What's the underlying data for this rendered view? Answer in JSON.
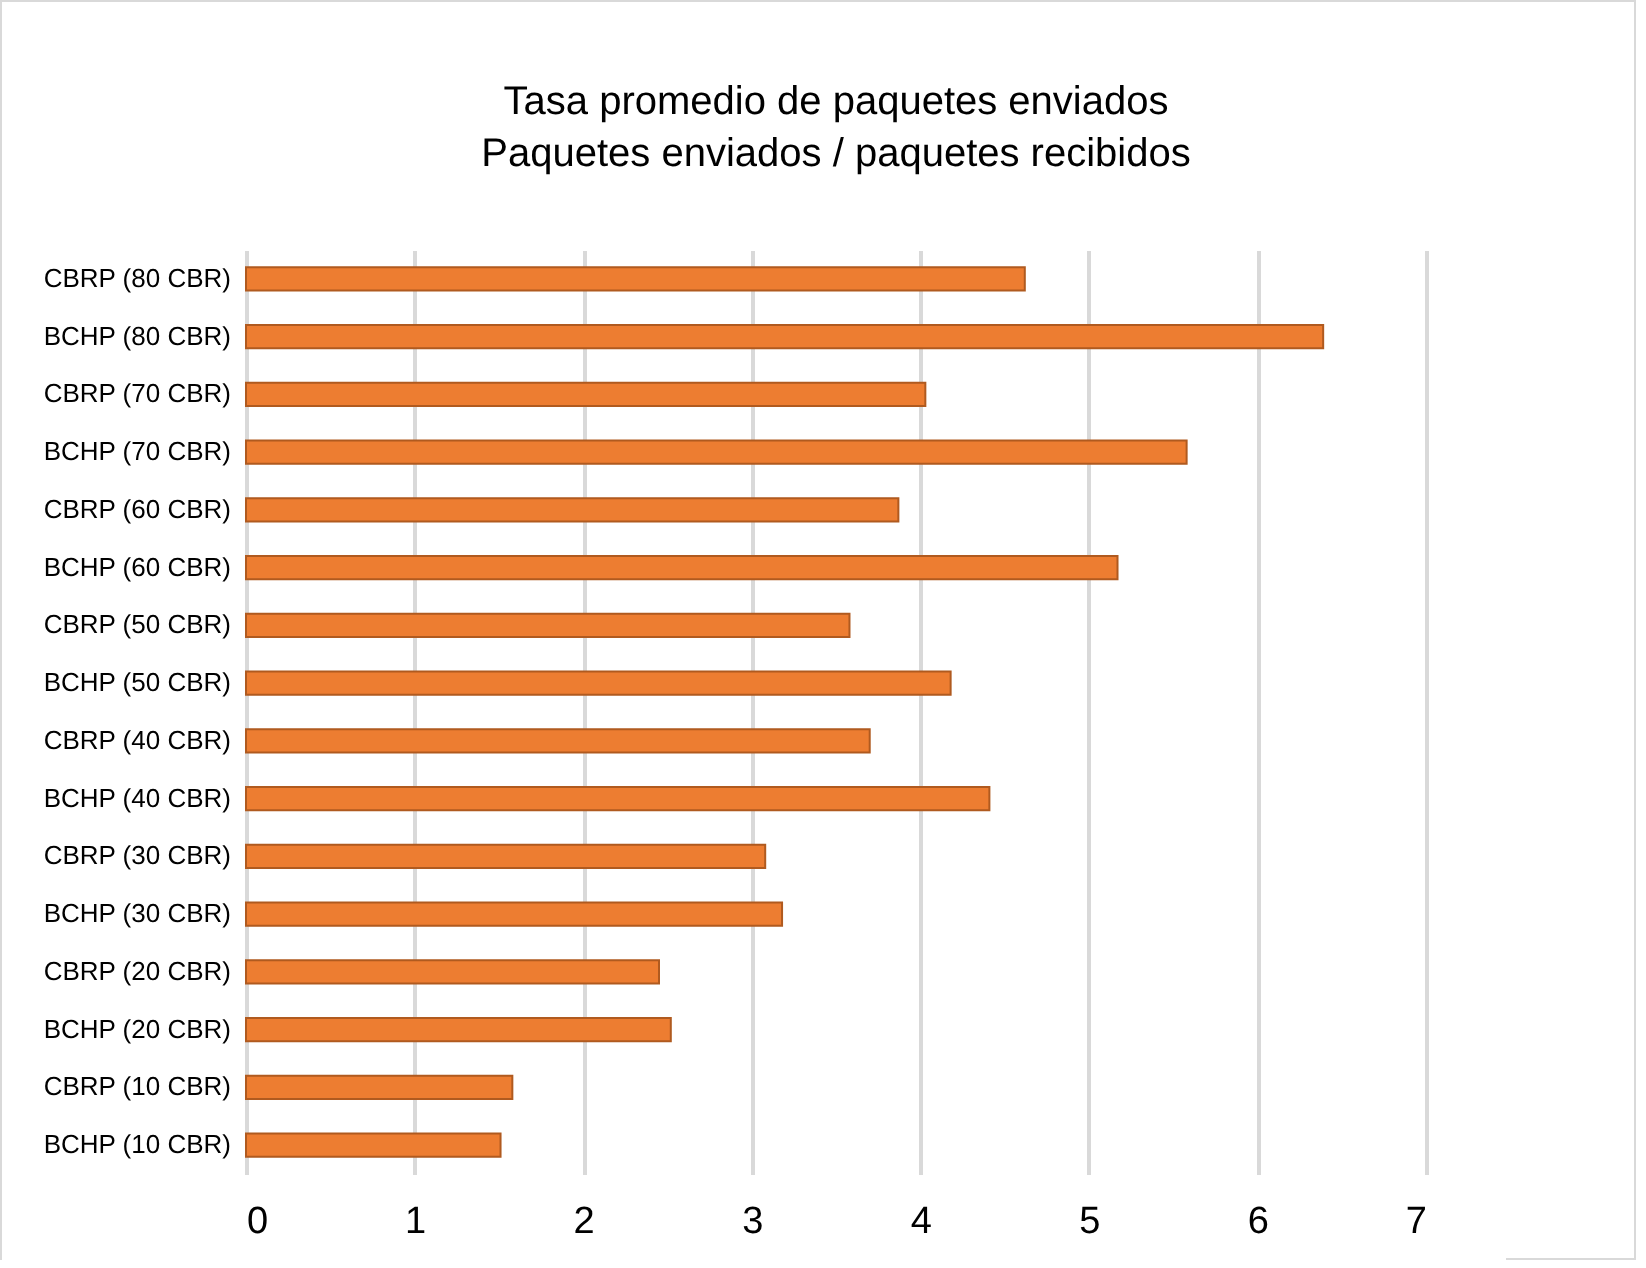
{
  "chart_data": {
    "type": "bar",
    "orientation": "horizontal",
    "title": "Tasa promedio de paquetes enviados",
    "subtitle": "Paquetes enviados / paquetes recibidos",
    "categories": [
      "CBRP (80 CBR)",
      "BCHP (80 CBR)",
      "CBRP (70 CBR)",
      "BCHP (70 CBR)",
      "CBRP (60 CBR)",
      "BCHP (60 CBR)",
      "CBRP (50 CBR)",
      "BCHP (50 CBR)",
      "CBRP (40 CBR)",
      "BCHP (40 CBR)",
      "CBRP (30 CBR)",
      "BCHP (30 CBR)",
      "CBRP (20 CBR)",
      "BCHP (20 CBR)",
      "CBRP (10 CBR)",
      "BCHP (10 CBR)"
    ],
    "values": [
      4.62,
      6.39,
      4.03,
      5.58,
      3.87,
      5.17,
      3.58,
      4.18,
      3.7,
      4.41,
      3.08,
      3.18,
      2.45,
      2.52,
      1.58,
      1.51
    ],
    "color": "#ed7d31",
    "xlim": [
      0,
      7
    ],
    "xticks": [
      0,
      1,
      2,
      3,
      4,
      5,
      6,
      7
    ],
    "grid": "x"
  }
}
